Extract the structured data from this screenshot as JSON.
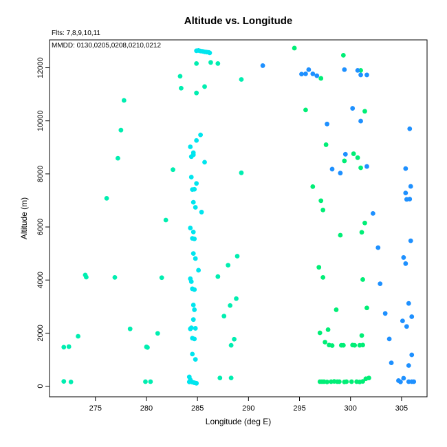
{
  "chart_data": {
    "type": "scatter",
    "title": "Altitude vs. Longitude",
    "annotations": [
      "Flts: 7,8,9,10,11",
      "MMDD: 0130,0205,0208,0210,0212"
    ],
    "xlabel": "Longitude (deg E)",
    "ylabel": "Altitude (m)",
    "xlim": [
      270.5,
      307.5
    ],
    "ylim": [
      -400,
      13050
    ],
    "xticks": [
      275,
      280,
      285,
      290,
      295,
      300,
      305
    ],
    "yticks": [
      0,
      2000,
      4000,
      6000,
      8000,
      10000,
      12000
    ],
    "grid": false,
    "colors": {
      "cyan": "#00e5ee",
      "green": "#00ee76",
      "blue": "#1e90ff",
      "teal_green": "#00eeb0"
    },
    "series": [
      {
        "color": "#00eeb0",
        "points": [
          [
            271.9,
            180
          ],
          [
            272.6,
            160
          ],
          [
            271.9,
            1470
          ],
          [
            272.4,
            1490
          ],
          [
            273.3,
            1880
          ],
          [
            274.0,
            4190
          ],
          [
            274.1,
            4110
          ],
          [
            276.1,
            7080
          ],
          [
            276.9,
            4100
          ],
          [
            277.2,
            8590
          ],
          [
            277.5,
            9650
          ],
          [
            277.8,
            10770
          ],
          [
            278.4,
            2160
          ],
          [
            279.9,
            170
          ],
          [
            280.0,
            1480
          ],
          [
            280.1,
            1460
          ],
          [
            280.4,
            170
          ],
          [
            281.1,
            1990
          ],
          [
            281.5,
            4090
          ],
          [
            281.9,
            6260
          ],
          [
            282.6,
            8160
          ],
          [
            283.3,
            11680
          ],
          [
            283.4,
            11230
          ],
          [
            287.2,
            310
          ],
          [
            288.3,
            310
          ],
          [
            284.9,
            11050
          ],
          [
            284.9,
            12160
          ],
          [
            285.7,
            11290
          ],
          [
            289.3,
            11560
          ],
          [
            289.3,
            8040
          ],
          [
            288.9,
            4900
          ],
          [
            288.0,
            4560
          ],
          [
            287.0,
            4130
          ],
          [
            288.8,
            3300
          ],
          [
            288.2,
            3040
          ],
          [
            287.6,
            2640
          ],
          [
            288.6,
            1770
          ],
          [
            288.3,
            1540
          ],
          [
            286.3,
            12200
          ],
          [
            287.0,
            12160
          ]
        ]
      },
      {
        "color": "#00e5ee",
        "points": [
          [
            284.3,
            9020
          ],
          [
            284.6,
            8720
          ],
          [
            284.4,
            8650
          ],
          [
            284.4,
            7880
          ],
          [
            284.5,
            7410
          ],
          [
            284.7,
            7420
          ],
          [
            284.9,
            7640
          ],
          [
            285.3,
            9470
          ],
          [
            284.9,
            9260
          ],
          [
            285.7,
            8440
          ],
          [
            284.6,
            6930
          ],
          [
            284.8,
            6740
          ],
          [
            285.4,
            6560
          ],
          [
            284.3,
            5960
          ],
          [
            284.5,
            5570
          ],
          [
            284.7,
            5550
          ],
          [
            284.6,
            5810
          ],
          [
            284.6,
            5000
          ],
          [
            284.8,
            4810
          ],
          [
            285.1,
            4370
          ],
          [
            284.3,
            4050
          ],
          [
            284.4,
            3940
          ],
          [
            284.5,
            3670
          ],
          [
            284.7,
            3640
          ],
          [
            284.6,
            3060
          ],
          [
            284.7,
            2880
          ],
          [
            284.6,
            2510
          ],
          [
            284.3,
            2160
          ],
          [
            284.4,
            2200
          ],
          [
            284.8,
            2180
          ],
          [
            284.5,
            1810
          ],
          [
            284.7,
            1780
          ],
          [
            284.5,
            1210
          ],
          [
            284.8,
            1010
          ],
          [
            284.2,
            350
          ],
          [
            284.3,
            240
          ],
          [
            284.5,
            150
          ],
          [
            284.7,
            130
          ],
          [
            284.9,
            110
          ],
          [
            284.2,
            160
          ],
          [
            284.9,
            12640
          ],
          [
            285.1,
            12650
          ],
          [
            285.3,
            12630
          ],
          [
            285.5,
            12620
          ],
          [
            285.7,
            12600
          ],
          [
            285.9,
            12590
          ],
          [
            286.1,
            12580
          ],
          [
            286.2,
            12560
          ],
          [
            284.6,
            8800
          ]
        ]
      },
      {
        "color": "#00ee76",
        "points": [
          [
            294.5,
            12740
          ],
          [
            297.1,
            11600
          ],
          [
            299.3,
            12470
          ],
          [
            301.0,
            11900
          ],
          [
            295.6,
            10410
          ],
          [
            301.4,
            10360
          ],
          [
            297.6,
            9100
          ],
          [
            299.4,
            8490
          ],
          [
            300.3,
            8760
          ],
          [
            300.7,
            8610
          ],
          [
            301.0,
            8230
          ],
          [
            296.3,
            7520
          ],
          [
            297.1,
            6990
          ],
          [
            297.3,
            6640
          ],
          [
            301.4,
            6150
          ],
          [
            301.1,
            5800
          ],
          [
            299.0,
            5690
          ],
          [
            296.9,
            4480
          ],
          [
            297.3,
            4100
          ],
          [
            301.2,
            4020
          ],
          [
            298.6,
            2880
          ],
          [
            301.6,
            2950
          ],
          [
            297.0,
            2010
          ],
          [
            297.8,
            2130
          ],
          [
            301.1,
            1910
          ],
          [
            297.5,
            1660
          ],
          [
            297.9,
            1550
          ],
          [
            298.2,
            1530
          ],
          [
            299.1,
            1540
          ],
          [
            299.3,
            1540
          ],
          [
            300.2,
            1550
          ],
          [
            300.4,
            1540
          ],
          [
            300.9,
            1540
          ],
          [
            301.2,
            1550
          ],
          [
            297.0,
            170
          ],
          [
            297.2,
            170
          ],
          [
            297.4,
            170
          ],
          [
            297.7,
            160
          ],
          [
            298.1,
            170
          ],
          [
            298.4,
            180
          ],
          [
            298.7,
            170
          ],
          [
            298.9,
            170
          ],
          [
            299.4,
            160
          ],
          [
            299.6,
            170
          ],
          [
            300.1,
            170
          ],
          [
            300.6,
            170
          ],
          [
            300.9,
            160
          ],
          [
            301.2,
            180
          ],
          [
            301.5,
            280
          ],
          [
            301.8,
            310
          ]
        ]
      },
      {
        "color": "#1e90ff",
        "points": [
          [
            291.4,
            12080
          ],
          [
            295.2,
            11760
          ],
          [
            295.6,
            11770
          ],
          [
            295.9,
            11930
          ],
          [
            296.3,
            11770
          ],
          [
            296.7,
            11700
          ],
          [
            299.4,
            11930
          ],
          [
            300.7,
            11900
          ],
          [
            301.0,
            11730
          ],
          [
            301.6,
            11730
          ],
          [
            300.2,
            10470
          ],
          [
            301.0,
            9990
          ],
          [
            297.7,
            9880
          ],
          [
            305.8,
            9700
          ],
          [
            299.5,
            8740
          ],
          [
            298.2,
            8180
          ],
          [
            299.0,
            8030
          ],
          [
            301.6,
            8280
          ],
          [
            305.4,
            8200
          ],
          [
            305.9,
            7530
          ],
          [
            305.4,
            7280
          ],
          [
            305.5,
            7040
          ],
          [
            305.8,
            7050
          ],
          [
            302.2,
            6510
          ],
          [
            305.9,
            5480
          ],
          [
            302.7,
            5220
          ],
          [
            305.2,
            4850
          ],
          [
            305.4,
            4620
          ],
          [
            302.9,
            3860
          ],
          [
            305.7,
            3120
          ],
          [
            303.4,
            2740
          ],
          [
            305.1,
            2460
          ],
          [
            305.5,
            2250
          ],
          [
            306.0,
            2620
          ],
          [
            303.8,
            1780
          ],
          [
            305.7,
            780
          ],
          [
            306.0,
            1180
          ],
          [
            304.0,
            880
          ],
          [
            304.7,
            210
          ],
          [
            304.9,
            160
          ],
          [
            305.2,
            300
          ],
          [
            305.7,
            170
          ],
          [
            306.0,
            170
          ],
          [
            306.2,
            170
          ]
        ]
      }
    ]
  }
}
